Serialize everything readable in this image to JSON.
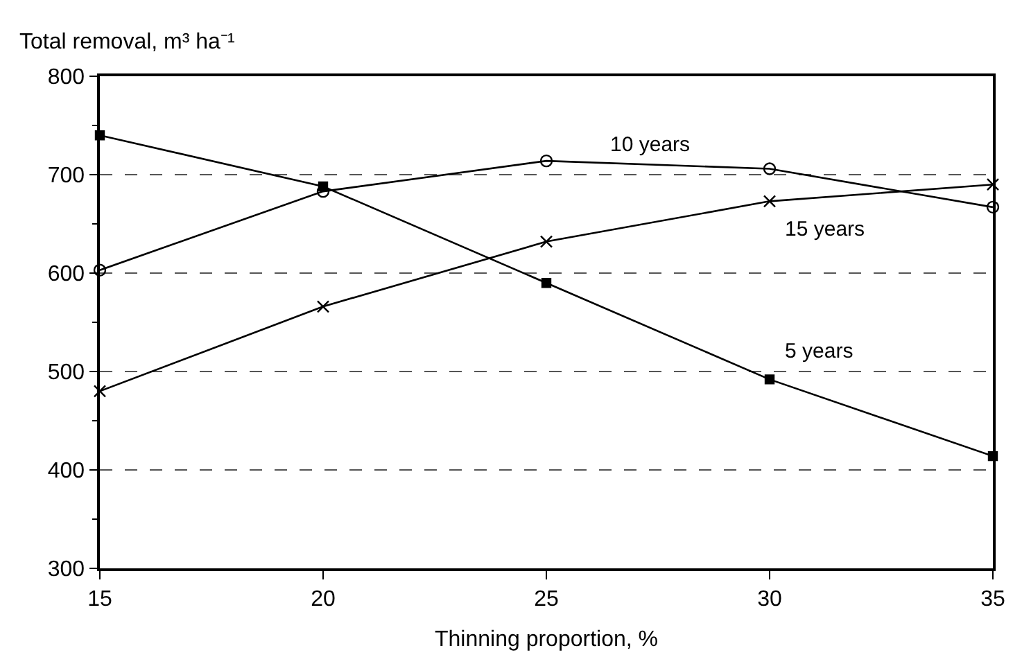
{
  "chart_data": {
    "type": "line",
    "ylabel": "Total removal, m³ ha⁻¹",
    "xlabel": "Thinning proportion, %",
    "x": [
      15,
      20,
      25,
      30,
      35
    ],
    "series": [
      {
        "name": "5 years",
        "color": "#000000",
        "marker": "square",
        "values": [
          740,
          688,
          590,
          492,
          414
        ]
      },
      {
        "name": "10 years",
        "color": "#000000",
        "marker": "circle",
        "values": [
          603,
          683,
          714,
          706,
          667
        ]
      },
      {
        "name": "15 years",
        "color": "#000000",
        "marker": "cross",
        "values": [
          480,
          566,
          632,
          673,
          690
        ]
      }
    ],
    "xlim": [
      15,
      35
    ],
    "xticks": [
      15,
      20,
      25,
      30,
      35
    ],
    "ylim": [
      300,
      800
    ],
    "yticks": [
      300,
      {
        "value": 350,
        "label": null
      },
      400,
      {
        "value": 450,
        "label": null
      },
      500,
      {
        "value": 550,
        "label": null
      },
      600,
      {
        "value": 650,
        "label": null
      },
      700,
      {
        "value": 750,
        "label": null
      },
      800
    ],
    "grid": "y",
    "line_style": "solid",
    "legend": false
  }
}
